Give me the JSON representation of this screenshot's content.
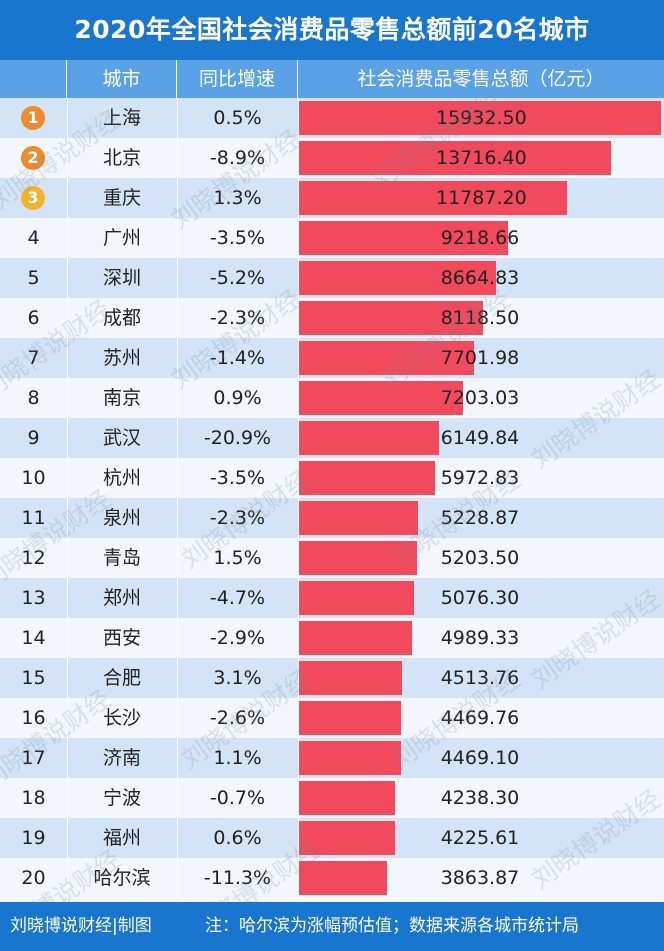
{
  "title": "2020年全国社会消费品零售总额前20名城市",
  "header": {
    "rank": "",
    "city": "城市",
    "growth": "同比增速",
    "sales": "社会消费品零售总额（亿元）"
  },
  "colors": {
    "title_bg": "#1976cf",
    "header_bg": "#5aa2e6",
    "row_odd": "#d3e4f6",
    "row_even": "#f3f7fb",
    "bar": "#f04a5c",
    "medal_gold": "#f5b22b",
    "medal_orange": "#f08a2a"
  },
  "watermark": "刘晓博说财经",
  "footer": {
    "source": "刘晓博说财经|制图",
    "note": "注：哈尔滨为涨幅预估值；数据来源各城市统计局"
  },
  "chart_data": {
    "type": "table",
    "title": "2020年全国社会消费品零售总额前20名城市",
    "columns": [
      "",
      "城市",
      "同比增速",
      "社会消费品零售总额（亿元）"
    ],
    "rows": [
      {
        "rank": "1",
        "city": "上海",
        "growth": "0.5%",
        "value": 15932.5,
        "value_text": "15932.50",
        "medal": "orange"
      },
      {
        "rank": "2",
        "city": "北京",
        "growth": "-8.9%",
        "value": 13716.4,
        "value_text": "13716.40",
        "medal": "orange"
      },
      {
        "rank": "3",
        "city": "重庆",
        "growth": "1.3%",
        "value": 11787.2,
        "value_text": "11787.20",
        "medal": "gold"
      },
      {
        "rank": "4",
        "city": "广州",
        "growth": "-3.5%",
        "value": 9218.66,
        "value_text": "9218.66"
      },
      {
        "rank": "5",
        "city": "深圳",
        "growth": "-5.2%",
        "value": 8664.83,
        "value_text": "8664.83"
      },
      {
        "rank": "6",
        "city": "成都",
        "growth": "-2.3%",
        "value": 8118.5,
        "value_text": "8118.50"
      },
      {
        "rank": "7",
        "city": "苏州",
        "growth": "-1.4%",
        "value": 7701.98,
        "value_text": "7701.98"
      },
      {
        "rank": "8",
        "city": "南京",
        "growth": "0.9%",
        "value": 7203.03,
        "value_text": "7203.03"
      },
      {
        "rank": "9",
        "city": "武汉",
        "growth": "-20.9%",
        "value": 6149.84,
        "value_text": "6149.84"
      },
      {
        "rank": "10",
        "city": "杭州",
        "growth": "-3.5%",
        "value": 5972.83,
        "value_text": "5972.83"
      },
      {
        "rank": "11",
        "city": "泉州",
        "growth": "-2.3%",
        "value": 5228.87,
        "value_text": "5228.87"
      },
      {
        "rank": "12",
        "city": "青岛",
        "growth": "1.5%",
        "value": 5203.5,
        "value_text": "5203.50"
      },
      {
        "rank": "13",
        "city": "郑州",
        "growth": "-4.7%",
        "value": 5076.3,
        "value_text": "5076.30"
      },
      {
        "rank": "14",
        "city": "西安",
        "growth": "-2.9%",
        "value": 4989.33,
        "value_text": "4989.33"
      },
      {
        "rank": "15",
        "city": "合肥",
        "growth": "3.1%",
        "value": 4513.76,
        "value_text": "4513.76"
      },
      {
        "rank": "16",
        "city": "长沙",
        "growth": "-2.6%",
        "value": 4469.76,
        "value_text": "4469.76"
      },
      {
        "rank": "17",
        "city": "济南",
        "growth": "1.1%",
        "value": 4469.1,
        "value_text": "4469.10"
      },
      {
        "rank": "18",
        "city": "宁波",
        "growth": "-0.7%",
        "value": 4238.3,
        "value_text": "4238.30"
      },
      {
        "rank": "19",
        "city": "福州",
        "growth": "0.6%",
        "value": 4225.61,
        "value_text": "4225.61"
      },
      {
        "rank": "20",
        "city": "哈尔滨",
        "growth": "-11.3%",
        "value": 3863.87,
        "value_text": "3863.87"
      }
    ]
  }
}
